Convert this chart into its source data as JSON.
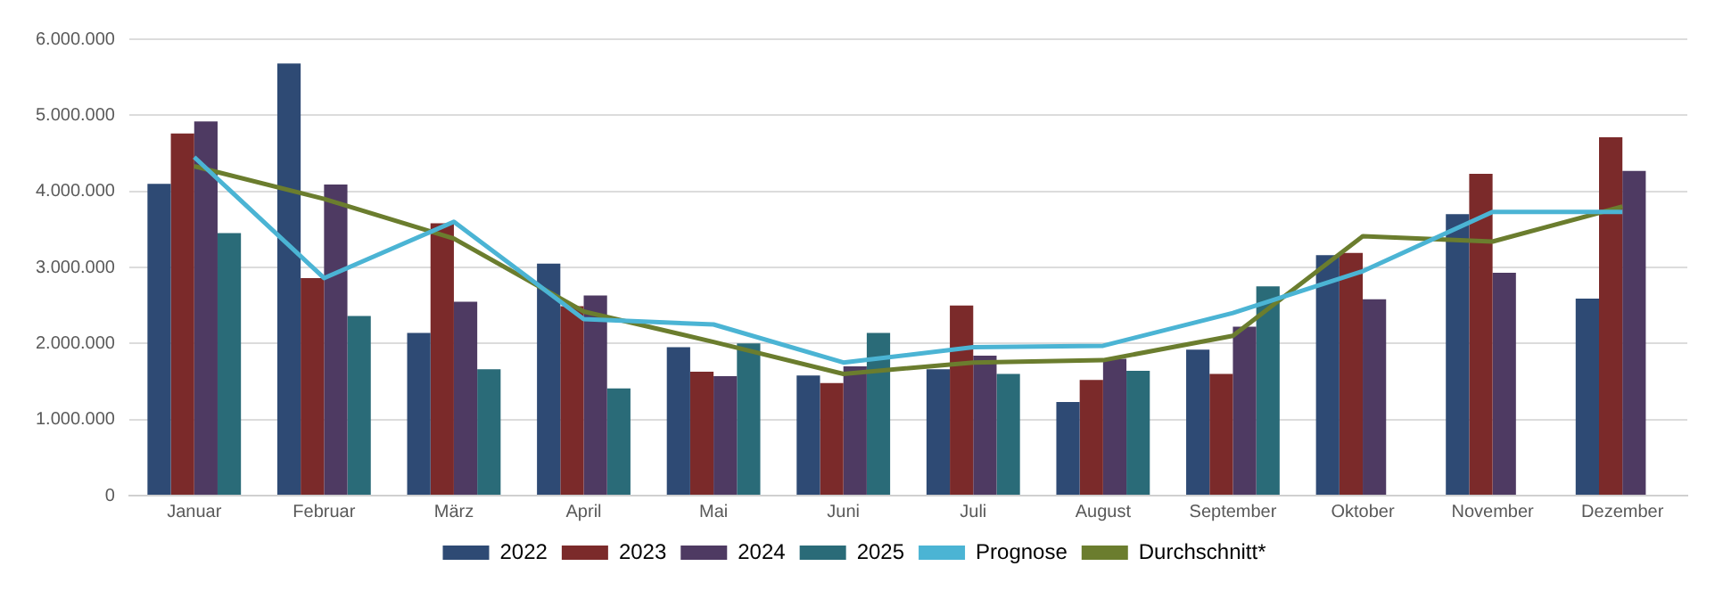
{
  "chart_data": {
    "type": "bar",
    "categories": [
      "Januar",
      "Februar",
      "März",
      "April",
      "Mai",
      "Juni",
      "Juli",
      "August",
      "September",
      "Oktober",
      "November",
      "Dezember"
    ],
    "series": [
      {
        "name": "2022",
        "color": "#2e4a74",
        "values": [
          4100000,
          5680000,
          2140000,
          3050000,
          1950000,
          1580000,
          1660000,
          1230000,
          1920000,
          3160000,
          3700000,
          2590000
        ]
      },
      {
        "name": "2023",
        "color": "#7b2a2a",
        "values": [
          4760000,
          2860000,
          3580000,
          2490000,
          1630000,
          1480000,
          2500000,
          1520000,
          1600000,
          3190000,
          4230000,
          4710000
        ]
      },
      {
        "name": "2024",
        "color": "#4e3a62",
        "values": [
          4920000,
          4090000,
          2550000,
          2630000,
          1570000,
          1700000,
          1840000,
          1800000,
          2220000,
          2580000,
          2930000,
          4270000
        ]
      },
      {
        "name": "2025",
        "color": "#2a6b78",
        "values": [
          3450000,
          2360000,
          1660000,
          1410000,
          2000000,
          2140000,
          1600000,
          1640000,
          2750000,
          null,
          null,
          null
        ]
      },
      {
        "name": "Prognose",
        "type": "line",
        "color": "#4bb4d4",
        "values": [
          4450000,
          2860000,
          3600000,
          2320000,
          2250000,
          1750000,
          1950000,
          1970000,
          2400000,
          2950000,
          3730000,
          3730000
        ]
      },
      {
        "name": "Durchschnitt*",
        "type": "line",
        "color": "#6b7d2e",
        "values": [
          4330000,
          3900000,
          3380000,
          2420000,
          2020000,
          1600000,
          1750000,
          1780000,
          2100000,
          3410000,
          3340000,
          3800000
        ]
      }
    ],
    "ylim": [
      0,
      6000000
    ],
    "yticks": [
      {
        "value": 0,
        "label": "0"
      },
      {
        "value": 1000000,
        "label": "1.000.000"
      },
      {
        "value": 2000000,
        "label": "2.000.000"
      },
      {
        "value": 3000000,
        "label": "3.000.000"
      },
      {
        "value": 4000000,
        "label": "4.000.000"
      },
      {
        "value": 5000000,
        "label": "5.000.000"
      },
      {
        "value": 6000000,
        "label": "6.000.000"
      }
    ],
    "grid": "y",
    "legend": "bottom",
    "marker": "none"
  }
}
